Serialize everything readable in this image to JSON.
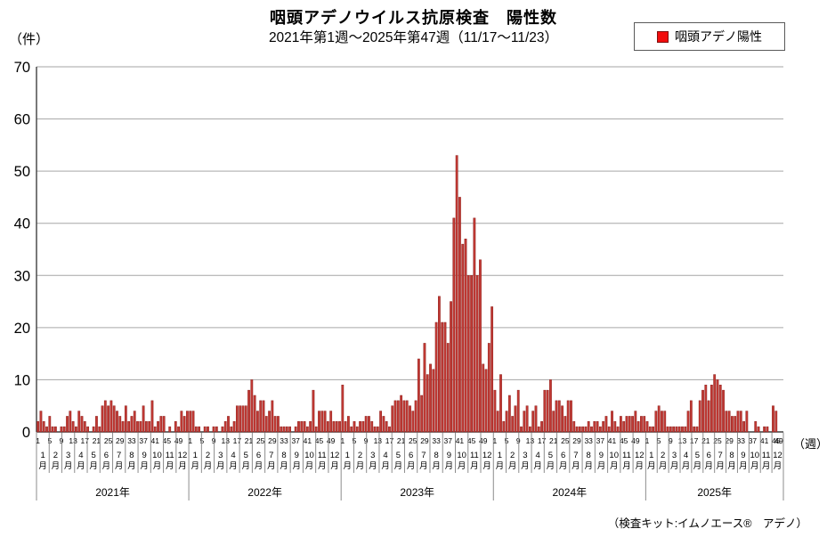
{
  "chart_data": {
    "type": "bar",
    "title": "咽頭アデノウイルス抗原検査　陽性数",
    "subtitle": "2021年第1週～2025年第47週（11/17～11/23）",
    "y_unit": "（件）",
    "x_unit": "（週）",
    "ylim": [
      0,
      70
    ],
    "ytick_interval": 10,
    "grid": true,
    "legend_position": "top-right",
    "legend": [
      {
        "label": "咽頭アデノ陽性",
        "color": "#f20d0d"
      }
    ],
    "bar_color": "#c23934",
    "bar_border_color": "#8f2420",
    "gridline_color": "#a6a6a6",
    "axis_color": "#404040",
    "tick_color": "#8c8c8c",
    "week_tick_labels": [
      1,
      5,
      9,
      13,
      17,
      21,
      25,
      29,
      33,
      37,
      41,
      45,
      49
    ],
    "month_labels": [
      "1月",
      "2月",
      "3月",
      "4月",
      "5月",
      "6月",
      "7月",
      "8月",
      "9月",
      "10月",
      "11月",
      "12月"
    ],
    "years": [
      {
        "label": "2021年",
        "values": [
          2,
          4,
          2,
          1,
          3,
          1,
          1,
          0,
          1,
          1,
          3,
          4,
          2,
          1,
          4,
          3,
          2,
          1,
          0,
          1,
          3,
          1,
          5,
          6,
          5,
          6,
          5,
          4,
          3,
          2,
          5,
          2,
          3,
          4,
          2,
          2,
          5,
          2,
          2,
          6,
          1,
          2,
          3,
          3,
          0,
          1,
          0,
          2,
          1,
          4,
          3,
          4
        ]
      },
      {
        "label": "2022年",
        "values": [
          4,
          4,
          1,
          1,
          0,
          1,
          1,
          0,
          1,
          1,
          0,
          1,
          2,
          3,
          1,
          2,
          5,
          5,
          5,
          5,
          8,
          10,
          7,
          4,
          6,
          6,
          3,
          4,
          6,
          3,
          3,
          1,
          1,
          1,
          1,
          0,
          1,
          2,
          2,
          2,
          1,
          2,
          8,
          1,
          4,
          4,
          4,
          2,
          4,
          2,
          2,
          2
        ]
      },
      {
        "label": "2023年",
        "values": [
          9,
          2,
          3,
          1,
          2,
          1,
          2,
          2,
          3,
          3,
          2,
          1,
          1,
          4,
          3,
          2,
          1,
          5,
          6,
          6,
          7,
          6,
          6,
          5,
          4,
          6,
          14,
          7,
          17,
          11,
          13,
          12,
          21,
          26,
          21,
          21,
          17,
          25,
          41,
          53,
          45,
          36,
          37,
          30,
          30,
          41,
          30,
          33,
          13,
          12,
          17,
          24
        ]
      },
      {
        "label": "2024年",
        "values": [
          8,
          4,
          11,
          2,
          4,
          7,
          3,
          5,
          8,
          1,
          4,
          5,
          1,
          4,
          5,
          1,
          2,
          8,
          8,
          10,
          4,
          6,
          6,
          5,
          3,
          6,
          6,
          2,
          1,
          1,
          1,
          1,
          2,
          1,
          2,
          2,
          1,
          2,
          3,
          1,
          4,
          2,
          1,
          3,
          2,
          3,
          3,
          3,
          4,
          2,
          3,
          3
        ]
      },
      {
        "label": "2025年",
        "values": [
          2,
          1,
          1,
          4,
          5,
          4,
          4,
          1,
          1,
          1,
          1,
          1,
          1,
          1,
          4,
          6,
          1,
          1,
          6,
          8,
          9,
          6,
          9,
          11,
          10,
          9,
          8,
          4,
          4,
          3,
          3,
          4,
          4,
          2,
          4,
          0,
          0,
          2,
          1,
          0,
          1,
          1,
          0,
          5,
          4,
          0,
          0
        ]
      }
    ],
    "footnote": "（検査キット:イムノエース®　アデノ）"
  }
}
